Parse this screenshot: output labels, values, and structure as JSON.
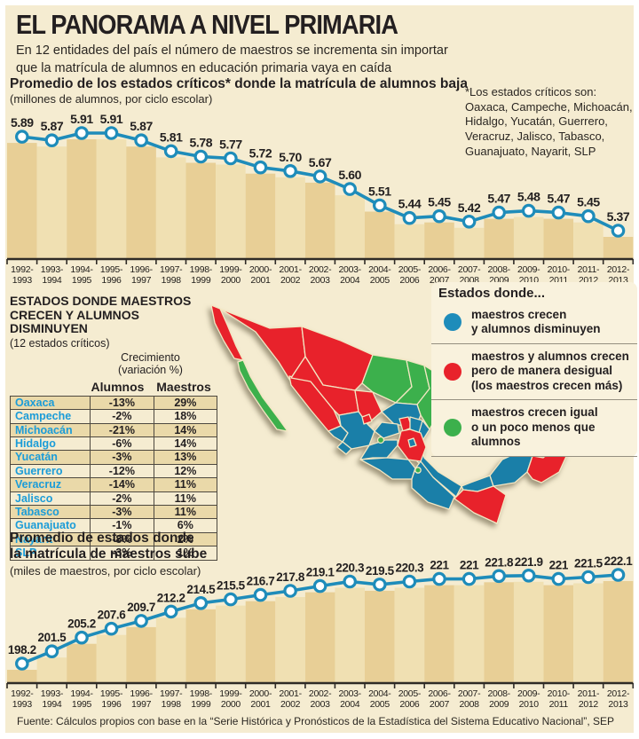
{
  "page": {
    "title": "EL PANORAMA A NIVEL PRIMARIA",
    "subtitle_line1": "En 12 entidades del país el número de maestros se incrementa sin importar",
    "subtitle_line2": "que la matrícula de alumnos en educación primaria vaya en caída",
    "footer": "Fuente: Cálculos propios con base en la “Serie Histórica y Pronósticos de la Estadística del Sistema Educativo Nacional”, SEP"
  },
  "colors": {
    "background": "#f5ecd1",
    "panel": "#f9f2dd",
    "stripe_dark": "#e8cf96",
    "stripe_light": "#f0e0b2",
    "line_blue": "#1e8cba",
    "table_state_blue": "#1b9cd8",
    "axis_dark": "#2f2b26"
  },
  "note": {
    "l1": "*Los estados críticos son:",
    "l2": "Oaxaca, Campeche, Michoacán,",
    "l3": "Hidalgo, Yucatán, Guerrero,",
    "l4": "Veracruz, Jalisco, Tabasco,",
    "l5": "Guanajuato, Nayarit, SLP"
  },
  "chart_data": [
    {
      "type": "line",
      "title": "Promedio de los estados críticos* donde la matrícula de alumnos baja",
      "subtitle": "(millones de alumnos, por ciclo escolar)",
      "xlabel": "ciclo escolar",
      "ylabel": "millones de alumnos",
      "ylim": [
        5.37,
        5.91
      ],
      "grid": false,
      "legend_position": "none",
      "categories": [
        "1992-1993",
        "1993-1994",
        "1994-1995",
        "1995-1996",
        "1996-1997",
        "1997-1998",
        "1998-1999",
        "1999-2000",
        "2000-2001",
        "2001-2002",
        "2002-2003",
        "2003-2004",
        "2004-2005",
        "2005-2006",
        "2006-2007",
        "2007-2008",
        "2008-2009",
        "2009-2010",
        "2010-2011",
        "2011-2012",
        "2012-2013"
      ],
      "values": [
        5.89,
        5.87,
        5.91,
        5.91,
        5.87,
        5.81,
        5.78,
        5.77,
        5.72,
        5.7,
        5.67,
        5.6,
        5.51,
        5.44,
        5.45,
        5.42,
        5.47,
        5.48,
        5.47,
        5.45,
        5.37
      ],
      "labels": [
        "5.89",
        "5.87",
        "5.91",
        "5.91",
        "5.87",
        "5.81",
        "5.78",
        "5.77",
        "5.72",
        "5.70",
        "5.67",
        "5.60",
        "5.51",
        "5.44",
        "5.45",
        "5.42",
        "5.47",
        "5.48",
        "5.47",
        "5.45",
        "5.37"
      ]
    },
    {
      "type": "line",
      "title": "Promedio de estados donde la matrícula de maestros sube",
      "title_line1": "Promedio de estados donde",
      "title_line2": "la matrícula de maestros sube",
      "subtitle": "(miles de maestros, por ciclo escolar)",
      "xlabel": "ciclo escolar",
      "ylabel": "miles de maestros",
      "ylim": [
        198.2,
        222.1
      ],
      "grid": false,
      "legend_position": "none",
      "categories": [
        "1992-1993",
        "1993-1994",
        "1994-1995",
        "1995-1996",
        "1996-1997",
        "1997-1998",
        "1998-1999",
        "1999-2000",
        "2000-2001",
        "2001-2002",
        "2002-2003",
        "2003-2004",
        "2004-2005",
        "2005-2006",
        "2006-2007",
        "2007-2008",
        "2008-2009",
        "2009-2010",
        "2010-2011",
        "2011-2012",
        "2012-2013"
      ],
      "values": [
        198.2,
        201.5,
        205.2,
        207.6,
        209.7,
        212.2,
        214.5,
        215.5,
        216.7,
        217.8,
        219.1,
        220.3,
        219.5,
        220.3,
        221,
        221,
        221.8,
        221.9,
        221,
        221.5,
        222.1
      ],
      "labels": [
        "198.2",
        "201.5",
        "205.2",
        "207.6",
        "209.7",
        "212.2",
        "214.5",
        "215.5",
        "216.7",
        "217.8",
        "219.1",
        "220.3",
        "219.5",
        "220.3",
        "221",
        "221",
        "221.8",
        "221.9",
        "221",
        "221.5",
        "222.1"
      ]
    }
  ],
  "table": {
    "title_line1": "ESTADOS DONDE MAESTROS",
    "title_line2": "CRECEN Y ALUMNOS DISMINUYEN",
    "subtitle": "(12 estados críticos)",
    "group_header_line1": "Crecimiento",
    "group_header_line2": "(variación %)",
    "col_alumnos": "Alumnos",
    "col_maestros": "Maestros",
    "rows": [
      {
        "state": "Oaxaca",
        "alumnos": "-13%",
        "maestros": "29%"
      },
      {
        "state": "Campeche",
        "alumnos": "-2%",
        "maestros": "18%"
      },
      {
        "state": "Michoacán",
        "alumnos": "-21%",
        "maestros": "14%"
      },
      {
        "state": "Hidalgo",
        "alumnos": "-6%",
        "maestros": "14%"
      },
      {
        "state": "Yucatán",
        "alumnos": "-3%",
        "maestros": "13%"
      },
      {
        "state": "Guerrero",
        "alumnos": "-12%",
        "maestros": "12%"
      },
      {
        "state": "Veracruz",
        "alumnos": "-14%",
        "maestros": "11%"
      },
      {
        "state": "Jalisco",
        "alumnos": "-2%",
        "maestros": "11%"
      },
      {
        "state": "Tabasco",
        "alumnos": "-3%",
        "maestros": "11%"
      },
      {
        "state": "Guanajuato",
        "alumnos": "-1%",
        "maestros": "6%"
      },
      {
        "state": "Nayarit",
        "alumnos": "-8%",
        "maestros": "2%"
      },
      {
        "state": "SLP",
        "alumnos": "-3%",
        "maestros": "1%"
      }
    ]
  },
  "legend": {
    "title": "Estados donde...",
    "items": [
      {
        "color": "#1e8cba",
        "l1": "maestros crecen",
        "l2": "y alumnos disminuyen"
      },
      {
        "color": "#e8222b",
        "l1": "maestros y alumnos crecen",
        "l2": "pero de manera desigual",
        "l3": "(los maestros crecen más)"
      },
      {
        "color": "#3cb04c",
        "l1": "maestros crecen igual",
        "l2": "o un poco menos que alumnos"
      }
    ]
  },
  "map": {
    "category_colors": {
      "blue": "#1a7fa8",
      "red": "#e8222b",
      "green": "#3cb04c"
    },
    "states": {
      "baja-california": "red",
      "baja-california-sur": "green",
      "sonora": "red",
      "chihuahua": "red",
      "coahuila": "green",
      "nuevo-leon": "green",
      "tamaulipas": "green",
      "sinaloa": "red",
      "durango": "red",
      "zacatecas": "red",
      "aguascalientes": "red",
      "san-luis-potosi": "blue",
      "nayarit": "blue",
      "jalisco": "blue",
      "colima": "blue",
      "michoacan": "blue",
      "guanajuato": "blue",
      "queretaro": "red",
      "hidalgo": "blue",
      "mexico-puebla-morelos": "red",
      "distrito-federal": "blue",
      "guerrero": "blue",
      "oaxaca": "blue",
      "veracruz": "blue",
      "tabasco": "blue",
      "chiapas": "red",
      "campeche": "blue",
      "yucatan": "blue",
      "quintana-roo": "red",
      "small-green-1": "green",
      "small-green-2": "green"
    }
  }
}
